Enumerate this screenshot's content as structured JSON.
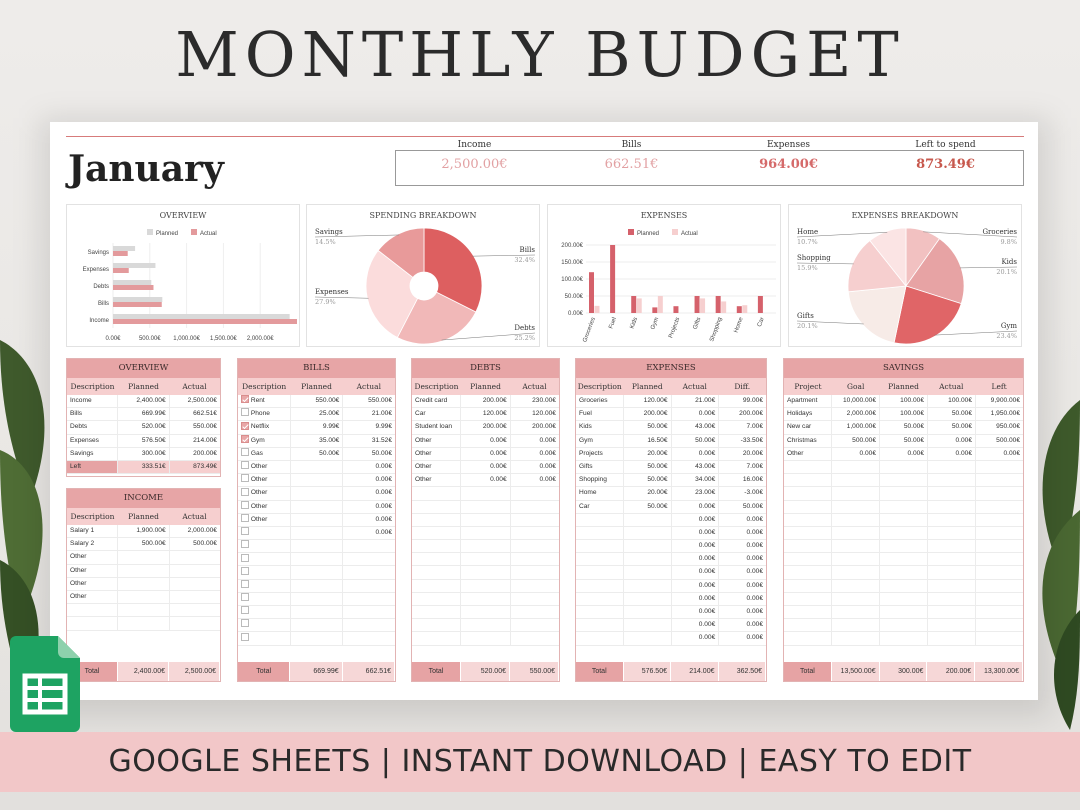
{
  "hero": {
    "title": "MONTHLY BUDGET",
    "banner": "GOOGLE SHEETS | INSTANT DOWNLOAD | EASY TO EDIT"
  },
  "colors": {
    "accent": "#d5616b",
    "header": "#e7a5a6",
    "subheader": "#f6cfcf",
    "planned": "#d9d9d9",
    "actual": "#e39a9c"
  },
  "month": "January",
  "summary": [
    {
      "label": "Income",
      "value": "2,500.00€",
      "color": "#e2a1a3"
    },
    {
      "label": "Bills",
      "value": "662.51€",
      "color": "#e2a1a3"
    },
    {
      "label": "Expenses",
      "value": "964.00€",
      "color": "#d56a6a"
    },
    {
      "label": "Left to spend",
      "value": "873.49€",
      "color": "#c7584d"
    }
  ],
  "chart_data": [
    {
      "type": "bar",
      "title": "OVERVIEW",
      "orientation": "horizontal",
      "categories": [
        "Savings",
        "Expenses",
        "Debts",
        "Bills",
        "Income"
      ],
      "series": [
        {
          "name": "Planned",
          "values": [
            300,
            576.5,
            520,
            669.99,
            2400
          ]
        },
        {
          "name": "Actual",
          "values": [
            200,
            214,
            550,
            662.51,
            2500
          ]
        }
      ],
      "xticks": [
        "0.00€",
        "500.00€",
        "1,000.00€",
        "1,500.00€",
        "2,000.00€"
      ],
      "xlim": [
        0,
        2500
      ]
    },
    {
      "type": "pie",
      "title": "SPENDING BREAKDOWN",
      "labels": [
        "Bills",
        "Debts",
        "Expenses",
        "Savings"
      ],
      "pct_labels": [
        "32.4%",
        "25.2%",
        "27.9%",
        "14.5%"
      ],
      "values": [
        32.4,
        25.2,
        27.9,
        14.5
      ],
      "colors": [
        "#dd5f60",
        "#f1b8b8",
        "#fbdcdc",
        "#e89a9a"
      ]
    },
    {
      "type": "bar",
      "title": "EXPENSES",
      "categories": [
        "Groceries",
        "Fuel",
        "Kids",
        "Gym",
        "Projects",
        "Gifts",
        "Shopping",
        "Home",
        "Car"
      ],
      "series": [
        {
          "name": "Planned",
          "values": [
            120,
            200,
            50,
            16.5,
            20,
            50,
            50,
            20,
            50
          ]
        },
        {
          "name": "Actual",
          "values": [
            21,
            0,
            43,
            50,
            0,
            43,
            34,
            23,
            0
          ]
        }
      ],
      "yticks": [
        "0.00€",
        "50.00€",
        "100.00€",
        "150.00€",
        "200.00€"
      ],
      "ylim": [
        0,
        200
      ]
    },
    {
      "type": "pie",
      "title": "EXPENSES BREAKDOWN",
      "labels": [
        "Groceries",
        "Kids",
        "Gym",
        "Gifts",
        "Shopping",
        "Home"
      ],
      "pct_labels": [
        "9.8%",
        "20.1%",
        "23.4%",
        "20.1%",
        "15.9%",
        "10.7%"
      ],
      "values": [
        9.8,
        20.1,
        23.4,
        20.1,
        15.9,
        10.7
      ],
      "colors": [
        "#f2c1c1",
        "#e7a3a4",
        "#e06567",
        "#f7ebe7",
        "#f6cfcf",
        "#fbe4e4"
      ]
    }
  ],
  "overview_legend": {
    "planned": "Planned",
    "actual": "Actual"
  },
  "tables": {
    "overview": {
      "title": "OVERVIEW",
      "columns": [
        "Description",
        "Planned",
        "Actual"
      ],
      "rows": [
        [
          "Income",
          "2,400.00€",
          "2,500.00€"
        ],
        [
          "Bills",
          "669.99€",
          "662.51€"
        ],
        [
          "Debts",
          "520.00€",
          "550.00€"
        ],
        [
          "Expenses",
          "576.50€",
          "214.00€"
        ],
        [
          "Savings",
          "300.00€",
          "200.00€"
        ]
      ],
      "left": [
        "Left",
        "333.51€",
        "873.49€"
      ]
    },
    "income": {
      "title": "INCOME",
      "columns": [
        "Description",
        "Planned",
        "Actual"
      ],
      "rows": [
        [
          "Salary 1",
          "1,900.00€",
          "2,000.00€"
        ],
        [
          "Salary 2",
          "500.00€",
          "500.00€"
        ],
        [
          "Other",
          "",
          ""
        ],
        [
          "Other",
          "",
          ""
        ],
        [
          "Other",
          "",
          ""
        ],
        [
          "Other",
          "",
          ""
        ],
        [
          "",
          "",
          ""
        ],
        [
          "",
          "",
          ""
        ]
      ],
      "total": [
        "Total",
        "2,400.00€",
        "2,500.00€"
      ]
    },
    "bills": {
      "title": "BILLS",
      "columns": [
        "Description",
        "Planned",
        "Actual"
      ],
      "rows": [
        [
          true,
          "Rent",
          "550.00€",
          "550.00€"
        ],
        [
          false,
          "Phone",
          "25.00€",
          "21.00€"
        ],
        [
          true,
          "Netflix",
          "9.99€",
          "9.99€"
        ],
        [
          true,
          "Gym",
          "35.00€",
          "31.52€"
        ],
        [
          false,
          "Gas",
          "50.00€",
          "50.00€"
        ],
        [
          false,
          "Other",
          "",
          "0.00€"
        ],
        [
          false,
          "Other",
          "",
          "0.00€"
        ],
        [
          false,
          "Other",
          "",
          "0.00€"
        ],
        [
          false,
          "Other",
          "",
          "0.00€"
        ],
        [
          false,
          "Other",
          "",
          "0.00€"
        ],
        [
          false,
          "",
          "",
          "0.00€"
        ],
        [
          false,
          "",
          "",
          ""
        ],
        [
          false,
          "",
          "",
          ""
        ],
        [
          false,
          "",
          "",
          ""
        ],
        [
          false,
          "",
          "",
          ""
        ],
        [
          false,
          "",
          "",
          ""
        ],
        [
          false,
          "",
          "",
          ""
        ],
        [
          false,
          "",
          "",
          ""
        ],
        [
          false,
          "",
          "",
          ""
        ]
      ],
      "total": [
        "Total",
        "669.99€",
        "662.51€"
      ]
    },
    "debts": {
      "title": "DEBTS",
      "columns": [
        "Description",
        "Planned",
        "Actual"
      ],
      "rows": [
        [
          "Credit card",
          "200.00€",
          "230.00€"
        ],
        [
          "Car",
          "120.00€",
          "120.00€"
        ],
        [
          "Student loan",
          "200.00€",
          "200.00€"
        ],
        [
          "Other",
          "0.00€",
          "0.00€"
        ],
        [
          "Other",
          "0.00€",
          "0.00€"
        ],
        [
          "Other",
          "0.00€",
          "0.00€"
        ],
        [
          "Other",
          "0.00€",
          "0.00€"
        ],
        [
          "",
          "",
          ""
        ],
        [
          "",
          "",
          ""
        ],
        [
          "",
          "",
          ""
        ],
        [
          "",
          "",
          ""
        ],
        [
          "",
          "",
          ""
        ],
        [
          "",
          "",
          ""
        ],
        [
          "",
          "",
          ""
        ],
        [
          "",
          "",
          ""
        ],
        [
          "",
          "",
          ""
        ],
        [
          "",
          "",
          ""
        ],
        [
          "",
          "",
          ""
        ],
        [
          "",
          "",
          ""
        ]
      ],
      "total": [
        "Total",
        "520.00€",
        "550.00€"
      ]
    },
    "expenses": {
      "title": "EXPENSES",
      "columns": [
        "Description",
        "Planned",
        "Actual",
        "Diff."
      ],
      "rows": [
        [
          "Groceries",
          "120.00€",
          "21.00€",
          "99.00€"
        ],
        [
          "Fuel",
          "200.00€",
          "0.00€",
          "200.00€"
        ],
        [
          "Kids",
          "50.00€",
          "43.00€",
          "7.00€"
        ],
        [
          "Gym",
          "16.50€",
          "50.00€",
          "-33.50€"
        ],
        [
          "Projects",
          "20.00€",
          "0.00€",
          "20.00€"
        ],
        [
          "Gifts",
          "50.00€",
          "43.00€",
          "7.00€"
        ],
        [
          "Shopping",
          "50.00€",
          "34.00€",
          "16.00€"
        ],
        [
          "Home",
          "20.00€",
          "23.00€",
          "-3.00€"
        ],
        [
          "Car",
          "50.00€",
          "0.00€",
          "50.00€"
        ],
        [
          "",
          "",
          "0.00€",
          "0.00€"
        ],
        [
          "",
          "",
          "0.00€",
          "0.00€"
        ],
        [
          "",
          "",
          "0.00€",
          "0.00€"
        ],
        [
          "",
          "",
          "0.00€",
          "0.00€"
        ],
        [
          "",
          "",
          "0.00€",
          "0.00€"
        ],
        [
          "",
          "",
          "0.00€",
          "0.00€"
        ],
        [
          "",
          "",
          "0.00€",
          "0.00€"
        ],
        [
          "",
          "",
          "0.00€",
          "0.00€"
        ],
        [
          "",
          "",
          "0.00€",
          "0.00€"
        ],
        [
          "",
          "",
          "0.00€",
          "0.00€"
        ]
      ],
      "total": [
        "Total",
        "576.50€",
        "214.00€",
        "362.50€"
      ]
    },
    "savings": {
      "title": "SAVINGS",
      "columns": [
        "Project",
        "Goal",
        "Planned",
        "Actual",
        "Left"
      ],
      "rows": [
        [
          "Apartment",
          "10,000.00€",
          "100.00€",
          "100.00€",
          "9,900.00€"
        ],
        [
          "Holidays",
          "2,000.00€",
          "100.00€",
          "50.00€",
          "1,950.00€"
        ],
        [
          "New car",
          "1,000.00€",
          "50.00€",
          "50.00€",
          "950.00€"
        ],
        [
          "Christmas",
          "500.00€",
          "50.00€",
          "0.00€",
          "500.00€"
        ],
        [
          "Other",
          "0.00€",
          "0.00€",
          "0.00€",
          "0.00€"
        ],
        [
          "",
          "",
          "",
          "",
          ""
        ],
        [
          "",
          "",
          "",
          "",
          ""
        ],
        [
          "",
          "",
          "",
          "",
          ""
        ],
        [
          "",
          "",
          "",
          "",
          ""
        ],
        [
          "",
          "",
          "",
          "",
          ""
        ],
        [
          "",
          "",
          "",
          "",
          ""
        ],
        [
          "",
          "",
          "",
          "",
          ""
        ],
        [
          "",
          "",
          "",
          "",
          ""
        ],
        [
          "",
          "",
          "",
          "",
          ""
        ],
        [
          "",
          "",
          "",
          "",
          ""
        ],
        [
          "",
          "",
          "",
          "",
          ""
        ],
        [
          "",
          "",
          "",
          "",
          ""
        ],
        [
          "",
          "",
          "",
          "",
          ""
        ],
        [
          "",
          "",
          "",
          "",
          ""
        ]
      ],
      "total": [
        "Total",
        "13,500.00€",
        "300.00€",
        "200.00€",
        "13,300.00€"
      ]
    }
  }
}
